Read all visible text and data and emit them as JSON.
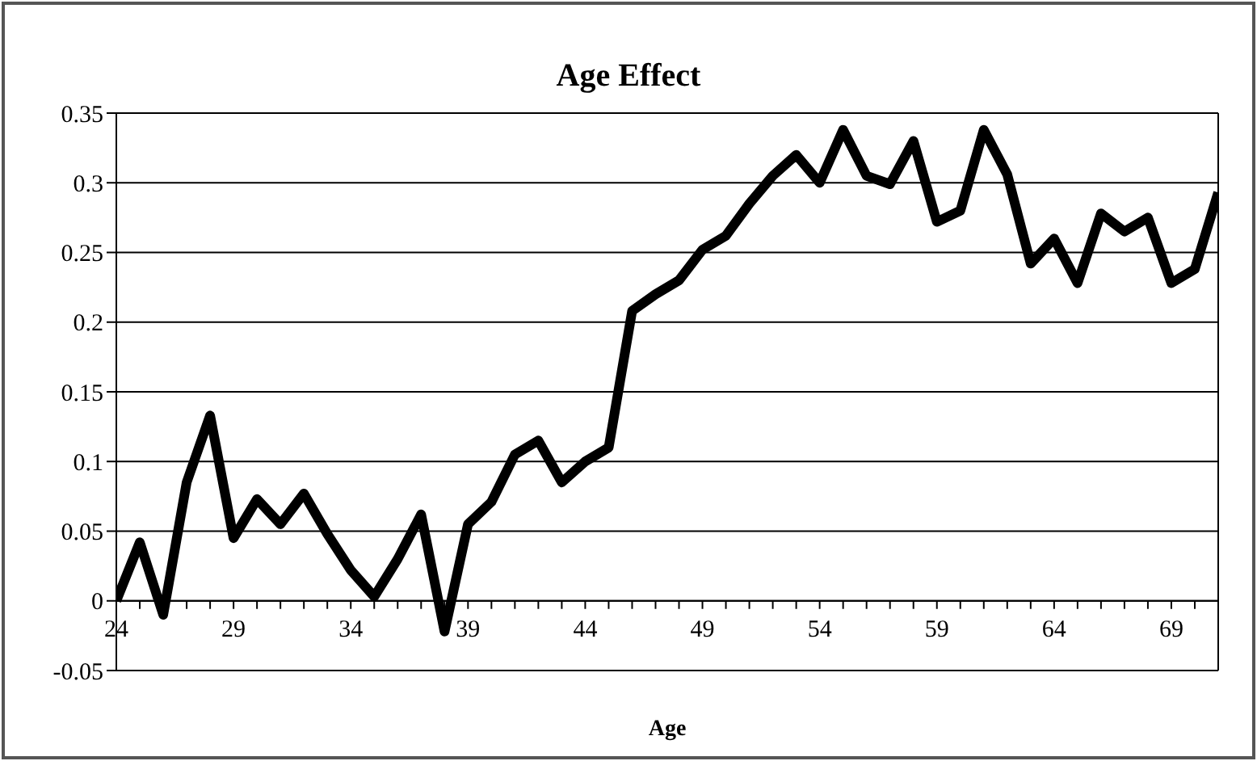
{
  "chart_data": {
    "type": "line",
    "title": "Age Effect",
    "xlabel": "Age",
    "x": [
      24,
      25,
      26,
      27,
      28,
      29,
      30,
      31,
      32,
      33,
      34,
      35,
      36,
      37,
      38,
      39,
      40,
      41,
      42,
      43,
      44,
      45,
      46,
      47,
      48,
      49,
      50,
      51,
      52,
      53,
      54,
      55,
      56,
      57,
      58,
      59,
      60,
      61,
      62,
      63,
      64,
      65,
      66,
      67,
      68,
      69,
      70,
      71
    ],
    "series": [
      {
        "color": "#000000",
        "values": [
          0,
          0.042,
          -0.01,
          0.085,
          0.133,
          0.045,
          0.073,
          0.055,
          0.077,
          0.048,
          0.022,
          0.003,
          0.03,
          0.062,
          -0.022,
          0.055,
          0.071,
          0.105,
          0.115,
          0.085,
          0.1,
          0.11,
          0.208,
          0.22,
          0.23,
          0.252,
          0.262,
          0.285,
          0.305,
          0.32,
          0.3,
          0.338,
          0.305,
          0.299,
          0.33,
          0.272,
          0.28,
          0.338,
          0.306,
          0.242,
          0.26,
          0.228,
          0.278,
          0.265,
          0.275,
          0.228,
          0.238,
          0.293
        ]
      }
    ],
    "xlim": [
      24,
      71
    ],
    "xticks": [
      24,
      {
        "value": 25,
        "label": null
      },
      {
        "value": 26,
        "label": null
      },
      {
        "value": 27,
        "label": null
      },
      {
        "value": 28,
        "label": null
      },
      29,
      {
        "value": 30,
        "label": null
      },
      {
        "value": 31,
        "label": null
      },
      {
        "value": 32,
        "label": null
      },
      {
        "value": 33,
        "label": null
      },
      34,
      {
        "value": 35,
        "label": null
      },
      {
        "value": 36,
        "label": null
      },
      {
        "value": 37,
        "label": null
      },
      {
        "value": 38,
        "label": null
      },
      39,
      {
        "value": 40,
        "label": null
      },
      {
        "value": 41,
        "label": null
      },
      {
        "value": 42,
        "label": null
      },
      {
        "value": 43,
        "label": null
      },
      44,
      {
        "value": 45,
        "label": null
      },
      {
        "value": 46,
        "label": null
      },
      {
        "value": 47,
        "label": null
      },
      {
        "value": 48,
        "label": null
      },
      49,
      {
        "value": 50,
        "label": null
      },
      {
        "value": 51,
        "label": null
      },
      {
        "value": 52,
        "label": null
      },
      {
        "value": 53,
        "label": null
      },
      54,
      {
        "value": 55,
        "label": null
      },
      {
        "value": 56,
        "label": null
      },
      {
        "value": 57,
        "label": null
      },
      {
        "value": 58,
        "label": null
      },
      59,
      {
        "value": 60,
        "label": null
      },
      {
        "value": 61,
        "label": null
      },
      {
        "value": 62,
        "label": null
      },
      {
        "value": 63,
        "label": null
      },
      64,
      {
        "value": 65,
        "label": null
      },
      {
        "value": 66,
        "label": null
      },
      {
        "value": 67,
        "label": null
      },
      {
        "value": 68,
        "label": null
      },
      69,
      {
        "value": 70,
        "label": null
      },
      {
        "value": 71,
        "label": null
      }
    ],
    "ylim": [
      -0.05,
      0.35
    ],
    "yticks": [
      -0.05,
      0,
      0.05,
      0.1,
      0.15,
      0.2,
      0.25,
      0.3,
      0.35
    ],
    "grid": "y",
    "legend": false,
    "marker": "none",
    "line_style": "solid"
  }
}
